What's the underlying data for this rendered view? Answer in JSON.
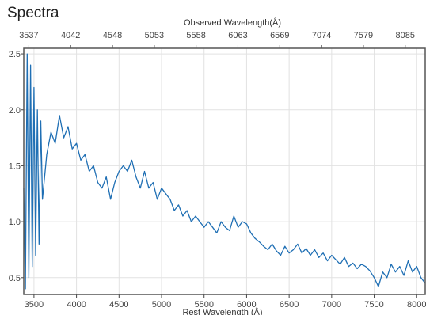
{
  "page": {
    "title": "Spectra"
  },
  "chart_data": {
    "type": "line",
    "title": "Spectra",
    "x_top_label": "Observed Wavelength(Å)",
    "x_bottom_label": "Rest Wavelength (Å)",
    "ylabel": "",
    "xlim": [
      3380,
      8100
    ],
    "ylim": [
      0.35,
      2.55
    ],
    "grid": true,
    "line_color": "#1f6fb4",
    "yticks": [
      0.5,
      1.0,
      1.5,
      2.0,
      2.5
    ],
    "yticklabels": [
      "0.5",
      "1.0",
      "1.5",
      "2.0",
      "2.5"
    ],
    "xticks_bottom": [
      3500,
      4000,
      4500,
      5000,
      5500,
      6000,
      6500,
      7000,
      7500,
      8000
    ],
    "xticks_top": [
      {
        "rest": 3440,
        "label": "3537"
      },
      {
        "rest": 3931,
        "label": "4042"
      },
      {
        "rest": 4423,
        "label": "4548"
      },
      {
        "rest": 4915,
        "label": "5053"
      },
      {
        "rest": 5406,
        "label": "5558"
      },
      {
        "rest": 5898,
        "label": "6063"
      },
      {
        "rest": 6390,
        "label": "6569"
      },
      {
        "rest": 6882,
        "label": "7074"
      },
      {
        "rest": 7373,
        "label": "7579"
      },
      {
        "rest": 7865,
        "label": "8085"
      }
    ],
    "series": [
      {
        "x": [
          3380,
          3400,
          3420,
          3440,
          3460,
          3480,
          3500,
          3520,
          3540,
          3560,
          3580,
          3600,
          3650,
          3700,
          3750,
          3800,
          3850,
          3900,
          3950,
          4000,
          4050,
          4100,
          4150,
          4200,
          4250,
          4300,
          4350,
          4400,
          4450,
          4500,
          4550,
          4600,
          4650,
          4700,
          4750,
          4800,
          4850,
          4900,
          4950,
          5000,
          5050,
          5100,
          5150,
          5200,
          5250,
          5300,
          5350,
          5400,
          5450,
          5500,
          5550,
          5600,
          5650,
          5700,
          5750,
          5800,
          5850,
          5900,
          5950,
          6000,
          6050,
          6100,
          6150,
          6200,
          6250,
          6300,
          6350,
          6400,
          6450,
          6500,
          6550,
          6600,
          6650,
          6700,
          6750,
          6800,
          6850,
          6900,
          6950,
          7000,
          7050,
          7100,
          7150,
          7200,
          7250,
          7300,
          7350,
          7400,
          7450,
          7500,
          7550,
          7600,
          7650,
          7700,
          7750,
          7800,
          7850,
          7900,
          7950,
          8000,
          8050,
          8100
        ],
        "y": [
          1.3,
          0.4,
          2.5,
          0.5,
          2.4,
          0.6,
          2.2,
          0.7,
          2.0,
          0.8,
          1.9,
          1.2,
          1.6,
          1.8,
          1.7,
          1.95,
          1.75,
          1.85,
          1.65,
          1.7,
          1.55,
          1.6,
          1.45,
          1.5,
          1.35,
          1.3,
          1.4,
          1.2,
          1.35,
          1.45,
          1.5,
          1.45,
          1.55,
          1.4,
          1.3,
          1.45,
          1.3,
          1.35,
          1.2,
          1.3,
          1.25,
          1.2,
          1.1,
          1.15,
          1.05,
          1.1,
          1.0,
          1.05,
          1.0,
          0.95,
          1.0,
          0.95,
          0.9,
          1.0,
          0.95,
          0.92,
          1.05,
          0.95,
          1.0,
          0.98,
          0.9,
          0.85,
          0.82,
          0.78,
          0.75,
          0.8,
          0.74,
          0.7,
          0.78,
          0.72,
          0.75,
          0.8,
          0.72,
          0.76,
          0.7,
          0.75,
          0.68,
          0.72,
          0.65,
          0.7,
          0.66,
          0.62,
          0.68,
          0.6,
          0.63,
          0.58,
          0.62,
          0.6,
          0.56,
          0.5,
          0.42,
          0.55,
          0.5,
          0.62,
          0.55,
          0.6,
          0.52,
          0.65,
          0.55,
          0.6,
          0.5,
          0.45
        ]
      }
    ]
  }
}
